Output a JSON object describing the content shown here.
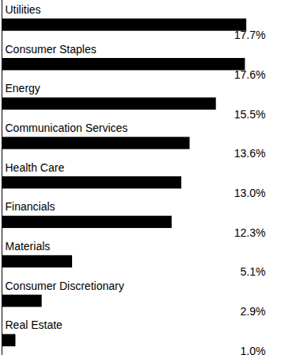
{
  "chart_data": {
    "type": "bar",
    "orientation": "horizontal",
    "categories": [
      "Utilities",
      "Consumer Staples",
      "Energy",
      "Communication Services",
      "Health Care",
      "Financials",
      "Materials",
      "Consumer Discretionary",
      "Real Estate"
    ],
    "values": [
      17.7,
      17.6,
      15.5,
      13.6,
      13.0,
      12.3,
      5.1,
      2.9,
      1.0
    ],
    "value_labels": [
      "17.7%",
      "17.6%",
      "15.5%",
      "13.6%",
      "13.0%",
      "12.3%",
      "5.1%",
      "2.9%",
      "1.0%"
    ],
    "data_labels": true,
    "color": "#000000",
    "xlim": [
      0,
      20.5
    ],
    "tick_labels": false,
    "grid": false
  }
}
